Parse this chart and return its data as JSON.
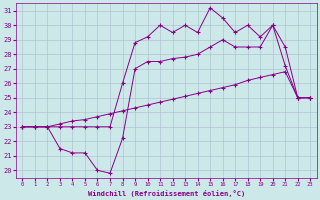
{
  "xlabel": "Windchill (Refroidissement éolien,°C)",
  "xlim": [
    -0.5,
    23.5
  ],
  "ylim": [
    19.5,
    31.5
  ],
  "xticks": [
    0,
    1,
    2,
    3,
    4,
    5,
    6,
    7,
    8,
    9,
    10,
    11,
    12,
    13,
    14,
    15,
    16,
    17,
    18,
    19,
    20,
    21,
    22,
    23
  ],
  "yticks": [
    20,
    21,
    22,
    23,
    24,
    25,
    26,
    27,
    28,
    29,
    30,
    31
  ],
  "background_color": "#cde8e8",
  "line_color": "#880088",
  "grid_color": "#aabccc",
  "line1_x": [
    0,
    1,
    2,
    3,
    4,
    5,
    6,
    7,
    8,
    9,
    10,
    11,
    12,
    13,
    14,
    15,
    16,
    17,
    18,
    19,
    20,
    21,
    22,
    23
  ],
  "line1_y": [
    23.0,
    23.0,
    23.0,
    23.2,
    23.4,
    23.5,
    23.7,
    23.9,
    24.1,
    24.3,
    24.5,
    24.7,
    24.9,
    25.1,
    25.3,
    25.5,
    25.7,
    25.9,
    26.2,
    26.4,
    26.6,
    26.8,
    25.0,
    25.0
  ],
  "line2_x": [
    0,
    1,
    2,
    3,
    4,
    5,
    6,
    7,
    8,
    9,
    10,
    11,
    12,
    13,
    14,
    15,
    16,
    17,
    18,
    19,
    20,
    21,
    22,
    23
  ],
  "line2_y": [
    23.0,
    23.0,
    23.0,
    21.5,
    21.2,
    21.2,
    20.0,
    19.8,
    22.2,
    27.0,
    27.5,
    27.5,
    27.7,
    27.8,
    28.0,
    28.5,
    29.0,
    28.5,
    28.5,
    28.5,
    30.0,
    27.2,
    25.0,
    25.0
  ],
  "line3_x": [
    0,
    1,
    2,
    3,
    4,
    5,
    6,
    7,
    8,
    9,
    10,
    11,
    12,
    13,
    14,
    15,
    16,
    17,
    18,
    19,
    20,
    21,
    22,
    23
  ],
  "line3_y": [
    23.0,
    23.0,
    23.0,
    23.0,
    23.0,
    23.0,
    23.0,
    23.0,
    26.0,
    28.8,
    29.2,
    30.0,
    29.5,
    30.0,
    29.5,
    31.2,
    30.5,
    29.5,
    30.0,
    29.2,
    30.0,
    28.5,
    25.0,
    25.0
  ]
}
